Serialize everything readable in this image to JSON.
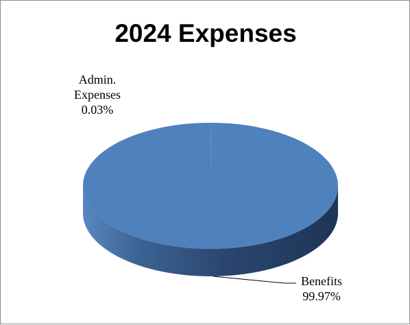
{
  "chart_data": {
    "type": "pie",
    "title": "2024 Expenses",
    "slices": [
      {
        "name_lines": [
          "Admin.",
          "Expenses"
        ],
        "percent_label": "0.03%",
        "value": 0.03
      },
      {
        "name_lines": [
          "Benefits"
        ],
        "percent_label": "99.97%",
        "value": 99.97
      }
    ],
    "style": "3d",
    "legend": "none",
    "colors": {
      "top": "#4f81bd",
      "side_dark": "#1f3556",
      "side_light": "#5a87c0",
      "leader": "#000000"
    }
  }
}
